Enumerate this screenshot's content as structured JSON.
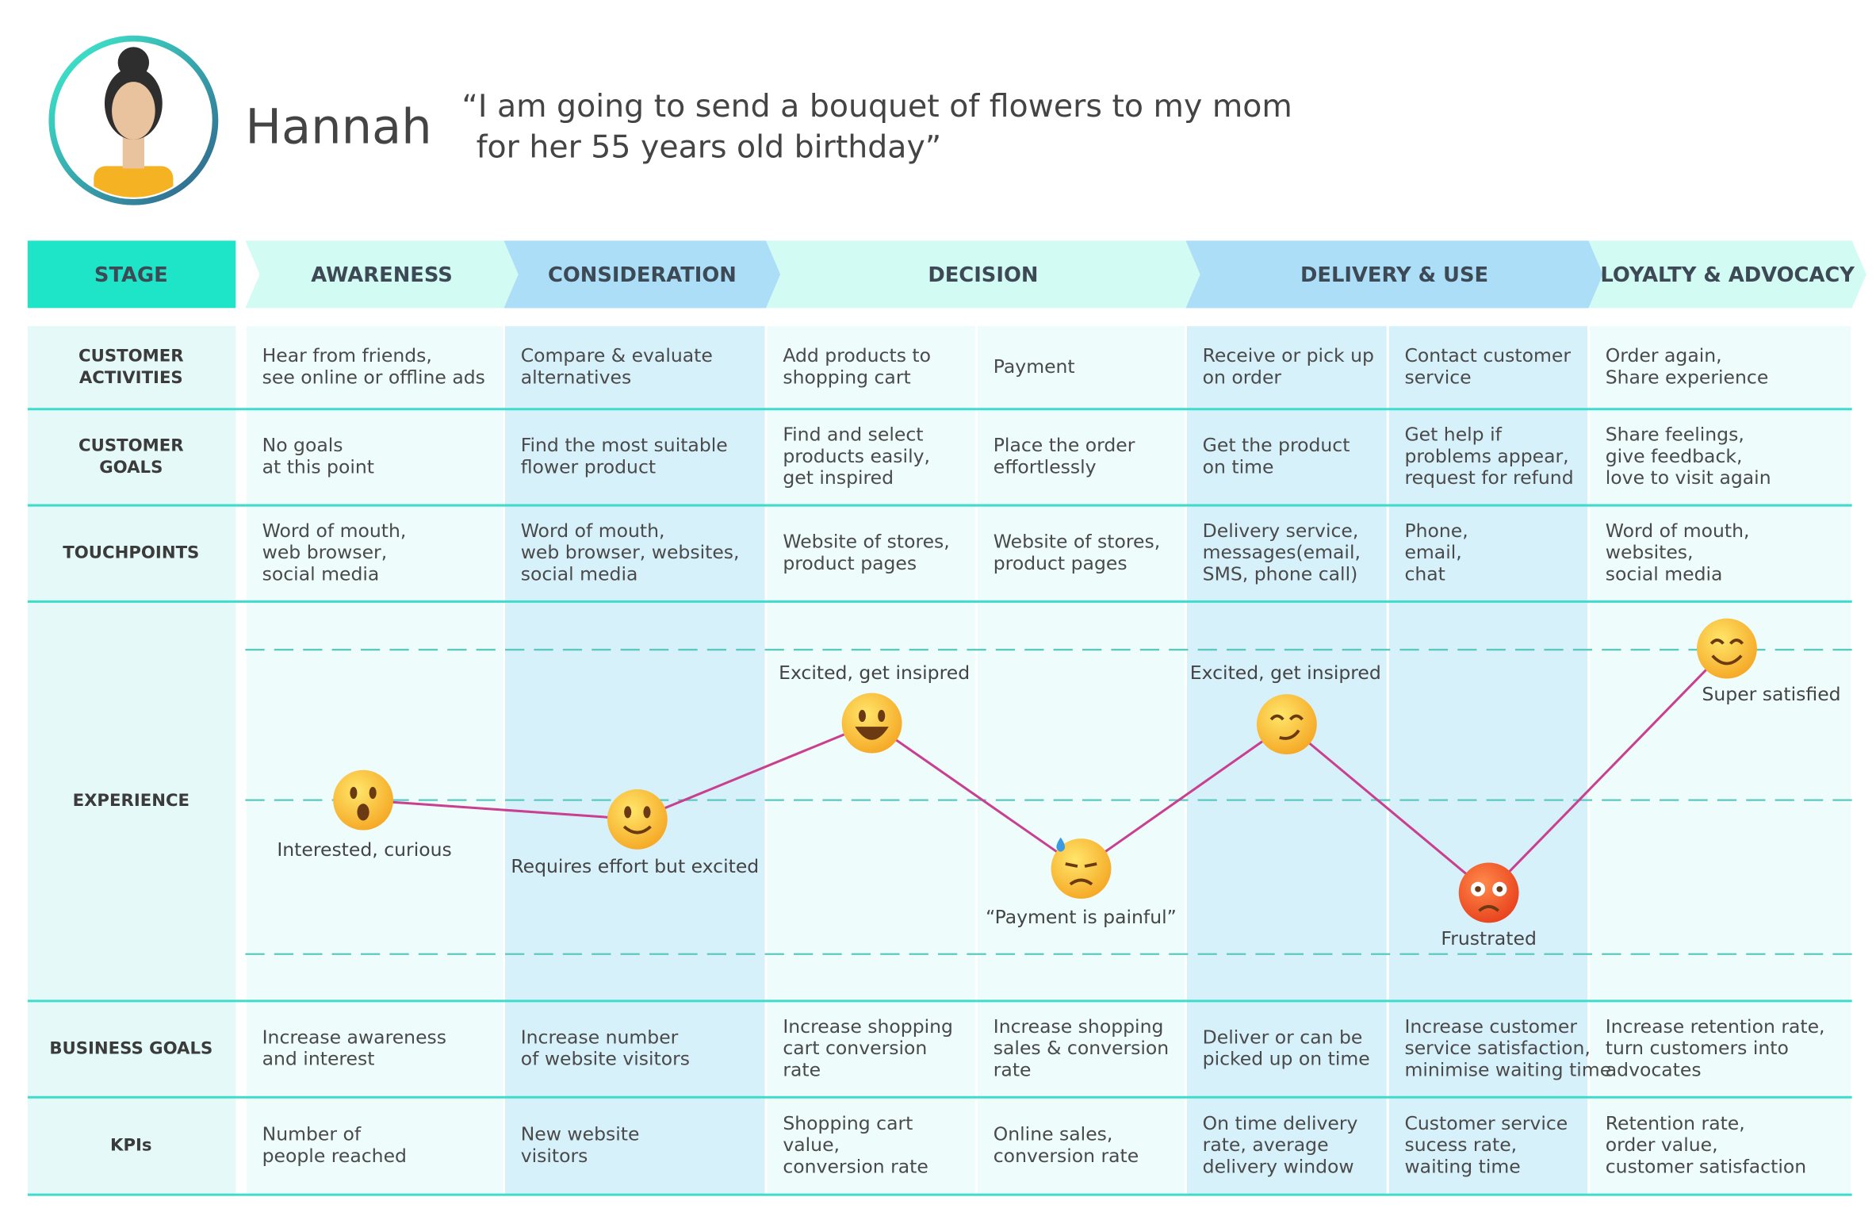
{
  "persona": {
    "name": "Hannah",
    "quote_lines": [
      "“I am going to send a bouquet of flowers to my mom",
      "for her 55 years old birthday”"
    ]
  },
  "stage_label": "STAGE",
  "stages": [
    "AWARENESS",
    "CONSIDERATION",
    "DECISION",
    "DELIVERY & USE",
    "LOYALTY & ADVOCACY"
  ],
  "rows": [
    {
      "label": [
        "CUSTOMER",
        "ACTIVITIES"
      ],
      "cells": [
        [
          "Hear from friends,",
          "see online or offline ads"
        ],
        [
          "Compare & evaluate",
          "alternatives"
        ],
        [
          "Add products to",
          "shopping cart"
        ],
        [
          "Payment"
        ],
        [
          "Receive or pick up",
          "on order"
        ],
        [
          "Contact customer",
          "service"
        ],
        [
          "Order again,",
          "Share experience"
        ]
      ]
    },
    {
      "label": [
        "CUSTOMER",
        "GOALS"
      ],
      "cells": [
        [
          "No goals",
          "at this point"
        ],
        [
          "Find the most suitable",
          "flower product"
        ],
        [
          "Find and select",
          "products easily,",
          "get inspired"
        ],
        [
          "Place the order",
          "effortlessly"
        ],
        [
          "Get the product",
          "on time"
        ],
        [
          "Get help if",
          "problems appear,",
          "request for refund"
        ],
        [
          "Share feelings,",
          "give feedback,",
          "love to visit again"
        ]
      ]
    },
    {
      "label": [
        "TOUCHPOINTS"
      ],
      "cells": [
        [
          "Word of mouth,",
          "web browser,",
          "social media"
        ],
        [
          "Word of mouth,",
          "web browser, websites,",
          "social media"
        ],
        [
          "Website of stores,",
          "product pages"
        ],
        [
          "Website of stores,",
          "product pages"
        ],
        [
          "Delivery service,",
          "messages(email,",
          "SMS, phone call)"
        ],
        [
          "Phone,",
          "email,",
          "chat"
        ],
        [
          "Word of mouth,",
          "websites,",
          "social media"
        ]
      ]
    }
  ],
  "experience": {
    "label": [
      "EXPERIENCE"
    ],
    "points": [
      {
        "label": "Interested, curious"
      },
      {
        "label": "Requires effort but excited"
      },
      {
        "label": "Excited, get insipred"
      },
      {
        "label": "“Payment is painful”"
      },
      {
        "label": "Excited, get insipred"
      },
      {
        "label": "Frustrated"
      },
      {
        "label": "Super satisfied"
      }
    ]
  },
  "bottom_rows": [
    {
      "label": [
        "BUSINESS GOALS"
      ],
      "cells": [
        [
          "Increase awareness",
          "and interest"
        ],
        [
          "Increase number",
          "of website visitors"
        ],
        [
          "Increase shopping",
          "cart conversion",
          "rate"
        ],
        [
          "Increase shopping",
          "sales & conversion",
          "rate"
        ],
        [
          "Deliver or can be",
          "picked up on time"
        ],
        [
          "Increase customer",
          "service satisfaction,",
          "minimise waiting time"
        ],
        [
          "Increase retention rate,",
          "turn customers into",
          "advocates"
        ]
      ]
    },
    {
      "label": [
        "KPIs"
      ],
      "cells": [
        [
          "Number of",
          "people reached"
        ],
        [
          "New website",
          "visitors"
        ],
        [
          "Shopping cart",
          "value,",
          "conversion rate"
        ],
        [
          "Online sales,",
          "conversion rate"
        ],
        [
          "On time delivery",
          "rate, average",
          "delivery window"
        ],
        [
          "Customer service",
          "sucess rate,",
          "waiting time"
        ],
        [
          "Retention rate,",
          "order value,",
          "customer satisfaction"
        ]
      ]
    }
  ]
}
